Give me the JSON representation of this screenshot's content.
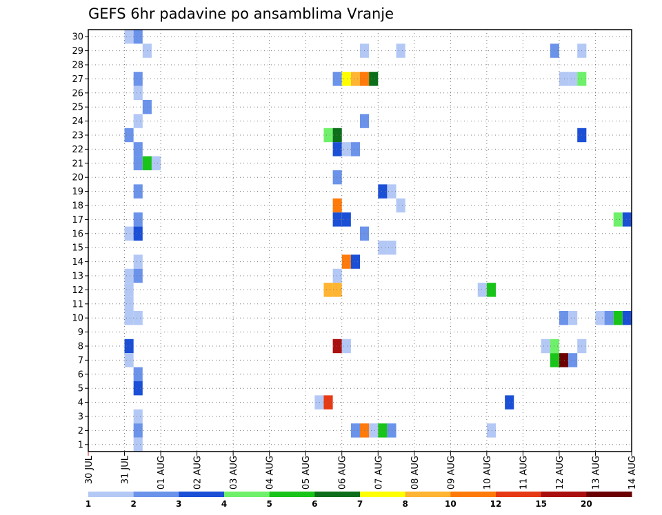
{
  "chart_data": {
    "type": "heatmap",
    "title": "GEFS 6hr padavine po ansamblima Vranje",
    "xlabel": "",
    "ylabel": "",
    "x_tick_labels": [
      "30 JUL",
      "31 JUL",
      "01 AUG",
      "02 AUG",
      "03 AUG",
      "04 AUG",
      "05 AUG",
      "06 AUG",
      "07 AUG",
      "08 AUG",
      "09 AUG",
      "10 AUG",
      "11 AUG",
      "12 AUG",
      "13 AUG",
      "14 AUG"
    ],
    "y_tick_labels": [
      "1",
      "2",
      "3",
      "4",
      "5",
      "6",
      "7",
      "8",
      "9",
      "10",
      "11",
      "12",
      "13",
      "14",
      "15",
      "16",
      "17",
      "18",
      "19",
      "20",
      "21",
      "22",
      "23",
      "24",
      "25",
      "26",
      "27",
      "28",
      "29",
      "30"
    ],
    "x_range_days": [
      0,
      15
    ],
    "y_range": [
      0.5,
      30.5
    ],
    "grid": true,
    "colorbar": {
      "placement": "bottom",
      "levels": [
        1,
        2,
        3,
        4,
        5,
        6,
        7,
        8,
        10,
        12,
        15,
        20
      ],
      "labels": [
        "1",
        "2",
        "3",
        "4",
        "5",
        "6",
        "7",
        "8",
        "10",
        "12",
        "15",
        "20"
      ],
      "colors": [
        "#b3c8f5",
        "#6b93ea",
        "#1b4fd6",
        "#6ff06a",
        "#19c419",
        "#0c6e1a",
        "#ffff00",
        "#ffb432",
        "#ff7a0a",
        "#e63a16",
        "#aa1010",
        "#6a0000"
      ]
    },
    "cells": [
      {
        "member": 30,
        "time": "31 JUL 00Z",
        "value": 1.5
      },
      {
        "member": 30,
        "time": "31 JUL 06Z",
        "value": 2.5
      },
      {
        "member": 29,
        "time": "31 JUL 12Z",
        "value": 1.5
      },
      {
        "member": 29,
        "time": "06 AUG 12Z",
        "value": 1.5
      },
      {
        "member": 29,
        "time": "07 AUG 12Z",
        "value": 1.5
      },
      {
        "member": 29,
        "time": "11 AUG 18Z",
        "value": 2.5
      },
      {
        "member": 29,
        "time": "12 AUG 12Z",
        "value": 1.5
      },
      {
        "member": 27,
        "time": "31 JUL 06Z",
        "value": 2.5
      },
      {
        "member": 27,
        "time": "05 AUG 18Z",
        "value": 2.5
      },
      {
        "member": 27,
        "time": "06 AUG 00Z",
        "value": 7.5
      },
      {
        "member": 27,
        "time": "06 AUG 06Z",
        "value": 8.5
      },
      {
        "member": 27,
        "time": "06 AUG 12Z",
        "value": 11
      },
      {
        "member": 27,
        "time": "06 AUG 18Z",
        "value": 6.5
      },
      {
        "member": 27,
        "time": "12 AUG 00Z",
        "value": 1.5
      },
      {
        "member": 27,
        "time": "12 AUG 06Z",
        "value": 1.5
      },
      {
        "member": 27,
        "time": "12 AUG 12Z",
        "value": 4.5
      },
      {
        "member": 26,
        "time": "31 JUL 06Z",
        "value": 1.5
      },
      {
        "member": 25,
        "time": "31 JUL 12Z",
        "value": 2.5
      },
      {
        "member": 24,
        "time": "31 JUL 06Z",
        "value": 1.5
      },
      {
        "member": 24,
        "time": "06 AUG 12Z",
        "value": 2.5
      },
      {
        "member": 23,
        "time": "31 JUL 00Z",
        "value": 2.5
      },
      {
        "member": 23,
        "time": "05 AUG 12Z",
        "value": 4.5
      },
      {
        "member": 23,
        "time": "05 AUG 18Z",
        "value": 6.5
      },
      {
        "member": 23,
        "time": "12 AUG 12Z",
        "value": 3.5
      },
      {
        "member": 22,
        "time": "31 JUL 06Z",
        "value": 2.5
      },
      {
        "member": 22,
        "time": "05 AUG 18Z",
        "value": 3.5
      },
      {
        "member": 22,
        "time": "06 AUG 00Z",
        "value": 1.5
      },
      {
        "member": 22,
        "time": "06 AUG 06Z",
        "value": 2.5
      },
      {
        "member": 21,
        "time": "31 JUL 06Z",
        "value": 2.5
      },
      {
        "member": 21,
        "time": "31 JUL 12Z",
        "value": 5.5
      },
      {
        "member": 21,
        "time": "31 JUL 18Z",
        "value": 1.5
      },
      {
        "member": 20,
        "time": "05 AUG 18Z",
        "value": 2.5
      },
      {
        "member": 19,
        "time": "31 JUL 06Z",
        "value": 2.5
      },
      {
        "member": 19,
        "time": "07 AUG 00Z",
        "value": 3.5
      },
      {
        "member": 19,
        "time": "07 AUG 06Z",
        "value": 1.5
      },
      {
        "member": 18,
        "time": "05 AUG 18Z",
        "value": 11
      },
      {
        "member": 18,
        "time": "07 AUG 12Z",
        "value": 1.5
      },
      {
        "member": 17,
        "time": "31 JUL 06Z",
        "value": 2.5
      },
      {
        "member": 17,
        "time": "05 AUG 18Z",
        "value": 3.5
      },
      {
        "member": 17,
        "time": "06 AUG 00Z",
        "value": 3.5
      },
      {
        "member": 17,
        "time": "13 AUG 12Z",
        "value": 4.5
      },
      {
        "member": 17,
        "time": "13 AUG 18Z",
        "value": 3.5
      },
      {
        "member": 16,
        "time": "31 JUL 00Z",
        "value": 1.5
      },
      {
        "member": 16,
        "time": "31 JUL 06Z",
        "value": 3.5
      },
      {
        "member": 16,
        "time": "06 AUG 12Z",
        "value": 2.5
      },
      {
        "member": 15,
        "time": "07 AUG 00Z",
        "value": 1.5
      },
      {
        "member": 15,
        "time": "07 AUG 06Z",
        "value": 1.5
      },
      {
        "member": 14,
        "time": "31 JUL 06Z",
        "value": 1.5
      },
      {
        "member": 14,
        "time": "06 AUG 00Z",
        "value": 11
      },
      {
        "member": 14,
        "time": "06 AUG 06Z",
        "value": 3.5
      },
      {
        "member": 13,
        "time": "31 JUL 00Z",
        "value": 1.5
      },
      {
        "member": 13,
        "time": "31 JUL 06Z",
        "value": 2.5
      },
      {
        "member": 13,
        "time": "05 AUG 18Z",
        "value": 1.5
      },
      {
        "member": 12,
        "time": "31 JUL 00Z",
        "value": 1.5
      },
      {
        "member": 12,
        "time": "05 AUG 12Z",
        "value": 9
      },
      {
        "member": 12,
        "time": "05 AUG 18Z",
        "value": 9
      },
      {
        "member": 12,
        "time": "09 AUG 18Z",
        "value": 1.5
      },
      {
        "member": 12,
        "time": "10 AUG 00Z",
        "value": 5.5
      },
      {
        "member": 11,
        "time": "31 JUL 00Z",
        "value": 1.5
      },
      {
        "member": 10,
        "time": "31 JUL 00Z",
        "value": 1.5
      },
      {
        "member": 10,
        "time": "31 JUL 06Z",
        "value": 1.5
      },
      {
        "member": 10,
        "time": "12 AUG 00Z",
        "value": 2.5
      },
      {
        "member": 10,
        "time": "12 AUG 06Z",
        "value": 1.5
      },
      {
        "member": 10,
        "time": "13 AUG 00Z",
        "value": 1.5
      },
      {
        "member": 10,
        "time": "13 AUG 06Z",
        "value": 2.5
      },
      {
        "member": 10,
        "time": "13 AUG 12Z",
        "value": 5.5
      },
      {
        "member": 10,
        "time": "13 AUG 18Z",
        "value": 3.5
      },
      {
        "member": 8,
        "time": "31 JUL 00Z",
        "value": 3.5
      },
      {
        "member": 8,
        "time": "05 AUG 18Z",
        "value": 17
      },
      {
        "member": 8,
        "time": "06 AUG 00Z",
        "value": 1.5
      },
      {
        "member": 8,
        "time": "11 AUG 12Z",
        "value": 1.5
      },
      {
        "member": 8,
        "time": "11 AUG 18Z",
        "value": 4.5
      },
      {
        "member": 8,
        "time": "12 AUG 12Z",
        "value": 1.5
      },
      {
        "member": 7,
        "time": "31 JUL 00Z",
        "value": 1.5
      },
      {
        "member": 7,
        "time": "11 AUG 18Z",
        "value": 5.5
      },
      {
        "member": 7,
        "time": "12 AUG 00Z",
        "value": 22
      },
      {
        "member": 7,
        "time": "12 AUG 06Z",
        "value": 2.5
      },
      {
        "member": 6,
        "time": "31 JUL 06Z",
        "value": 2.5
      },
      {
        "member": 5,
        "time": "31 JUL 06Z",
        "value": 3.5
      },
      {
        "member": 4,
        "time": "05 AUG 06Z",
        "value": 1.5
      },
      {
        "member": 4,
        "time": "05 AUG 12Z",
        "value": 13
      },
      {
        "member": 4,
        "time": "10 AUG 12Z",
        "value": 3.5
      },
      {
        "member": 3,
        "time": "31 JUL 06Z",
        "value": 1.5
      },
      {
        "member": 2,
        "time": "31 JUL 06Z",
        "value": 2.5
      },
      {
        "member": 2,
        "time": "06 AUG 06Z",
        "value": 2.5
      },
      {
        "member": 2,
        "time": "06 AUG 12Z",
        "value": 10.5
      },
      {
        "member": 2,
        "time": "06 AUG 18Z",
        "value": 1.5
      },
      {
        "member": 2,
        "time": "07 AUG 00Z",
        "value": 5.5
      },
      {
        "member": 2,
        "time": "07 AUG 06Z",
        "value": 2.5
      },
      {
        "member": 2,
        "time": "10 AUG 00Z",
        "value": 1.5
      },
      {
        "member": 1,
        "time": "31 JUL 06Z",
        "value": 1.5
      }
    ]
  }
}
